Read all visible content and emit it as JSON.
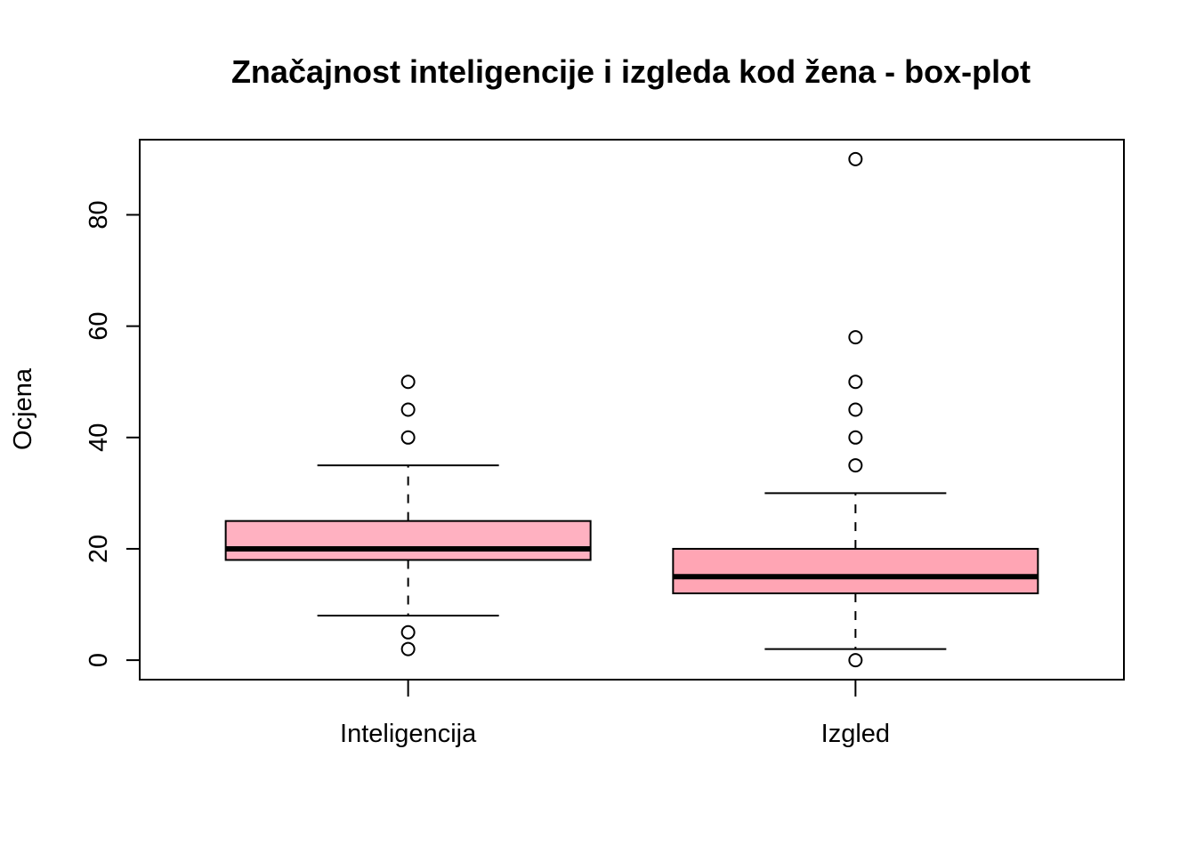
{
  "chart_data": {
    "type": "box",
    "title": "Značajnost inteligencije i izgleda kod žena - box-plot",
    "xlabel": "",
    "ylabel": "Ocjena",
    "ylim": [
      -3.5,
      93.5
    ],
    "yticks": [
      0,
      20,
      40,
      60,
      80
    ],
    "grid": false,
    "categories": [
      "Inteligencija",
      "Izgled"
    ],
    "boxes": [
      {
        "label": "Inteligencija",
        "color": "#FFB1C1",
        "whisker_low": 8,
        "q1": 18,
        "median": 20,
        "q3": 25,
        "whisker_high": 35,
        "outliers": [
          2,
          5,
          40,
          45,
          50
        ]
      },
      {
        "label": "Izgled",
        "color": "#FFA5B4",
        "whisker_low": 2,
        "q1": 12,
        "median": 15,
        "q3": 20,
        "whisker_high": 30,
        "outliers": [
          0,
          35,
          40,
          45,
          50,
          58,
          90
        ]
      }
    ]
  }
}
